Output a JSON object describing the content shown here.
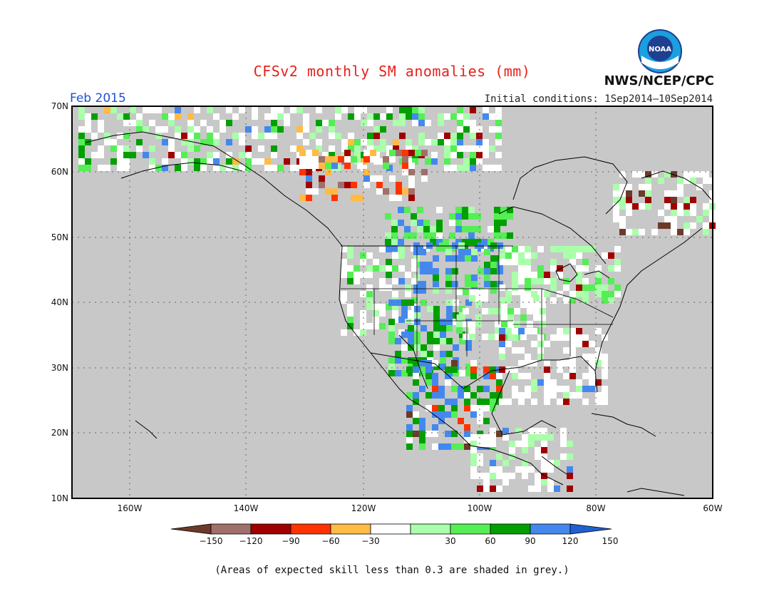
{
  "header": {
    "title": "CFSv2 monthly SM anomalies (mm)",
    "month": "Feb 2015",
    "initial_conditions": "Initial conditions: 1Sep2014–10Sep2014",
    "agency": "NWS/NCEP/CPC",
    "logo_text": "NOAA"
  },
  "map": {
    "latitude_labels": [
      "70N",
      "60N",
      "50N",
      "40N",
      "30N",
      "20N",
      "10N"
    ],
    "longitude_labels": [
      "160W",
      "140W",
      "120W",
      "100W",
      "80W",
      "60W"
    ],
    "background_color": "#c8c8c8",
    "water_color": "#c8c8c8"
  },
  "legend": {
    "tick_labels": [
      "-150",
      "-120",
      "-90",
      "-60",
      "-30",
      "30",
      "60",
      "90",
      "120",
      "150"
    ],
    "colors": [
      "#6b3a2a",
      "#a0706a",
      "#a00000",
      "#ff3300",
      "#ffbb44",
      "#ffffff",
      "#aaffaa",
      "#55ee55",
      "#00a000",
      "#4488ee",
      "#2060d0"
    ]
  },
  "footnote": "(Areas of expected skill less than 0.3 are shaded in grey.)"
}
